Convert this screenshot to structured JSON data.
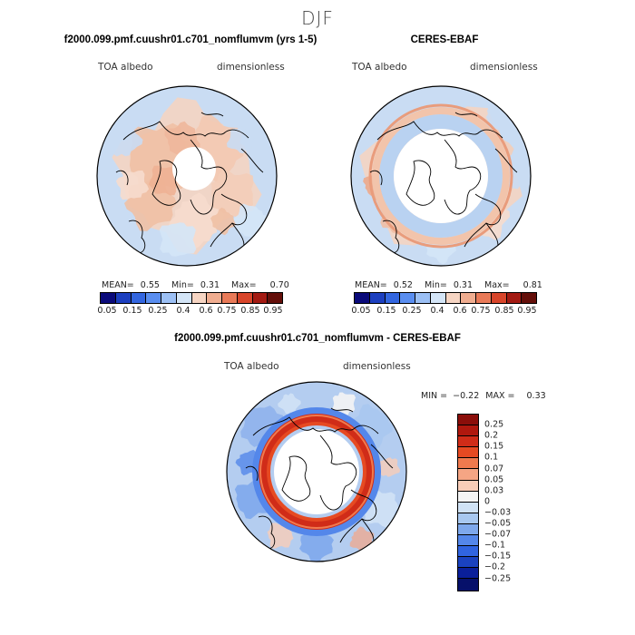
{
  "season_title": "DJF",
  "colors": {
    "rdbu_11": [
      "#0a0a7a",
      "#1c3fbf",
      "#3366e0",
      "#5a8ef0",
      "#9cc0f5",
      "#d4e5f7",
      "#f6d5c3",
      "#f0ad90",
      "#e97a58",
      "#d8452a",
      "#a31a12",
      "#640f0a"
    ],
    "land_outline": "#000000"
  },
  "chart_data": [
    {
      "type": "heatmap",
      "projection": "north-polar-stereographic",
      "title": "f2000.099.pmf.cuushr01.c701_nomflumvm (yrs 1-5)",
      "variable_label": "TOA albedo",
      "units_label": "dimensionless",
      "stats": {
        "mean_label": "MEAN=",
        "mean": "0.55",
        "min_label": "Min=",
        "min": "0.31",
        "max_label": "Max=",
        "max": "0.70"
      },
      "colorbar_ticks": [
        "0.05",
        "0.15",
        "0.25",
        "0.4",
        "0.6",
        "0.75",
        "0.85",
        "0.95"
      ],
      "dominant_range": [
        0.55,
        0.65
      ],
      "polar_cap": "missing"
    },
    {
      "type": "heatmap",
      "projection": "north-polar-stereographic",
      "title": "CERES-EBAF",
      "variable_label": "TOA albedo",
      "units_label": "dimensionless",
      "stats": {
        "mean_label": "MEAN=",
        "mean": "0.52",
        "min_label": "Min=",
        "min": "0.31",
        "max_label": "Max=",
        "max": "0.81"
      },
      "colorbar_ticks": [
        "0.05",
        "0.15",
        "0.25",
        "0.4",
        "0.6",
        "0.75",
        "0.85",
        "0.95"
      ],
      "dominant_range": [
        0.5,
        0.65
      ],
      "polar_cap": "missing"
    },
    {
      "type": "heatmap",
      "projection": "north-polar-stereographic",
      "title": "f2000.099.pmf.cuushr01.c701_nomflumvm - CERES-EBAF",
      "variable_label": "TOA albedo",
      "units_label": "dimensionless",
      "stats": {
        "min_label": "MIN =",
        "min": "−0.22",
        "max_label": "MAX =",
        "max": "0.33"
      },
      "colorbar_levels": [
        "0.25",
        "0.2",
        "0.15",
        "0.1",
        "0.07",
        "0.05",
        "0.03",
        "0",
        "−0.03",
        "−0.05",
        "−0.07",
        "−0.1",
        "−0.15",
        "−0.2",
        "−0.25"
      ],
      "colorbar_colors": [
        "#8b0e0a",
        "#b0180e",
        "#d02c18",
        "#e64a22",
        "#f07a4e",
        "#f5a584",
        "#f9cdb8",
        "#f4f4f4",
        "#d0e2f5",
        "#a8c8f0",
        "#7ea8ec",
        "#5487ea",
        "#3064e0",
        "#1a42c0",
        "#0a1f9a",
        "#06106a"
      ],
      "feature": "strong positive ring near polar-cap edge"
    }
  ]
}
